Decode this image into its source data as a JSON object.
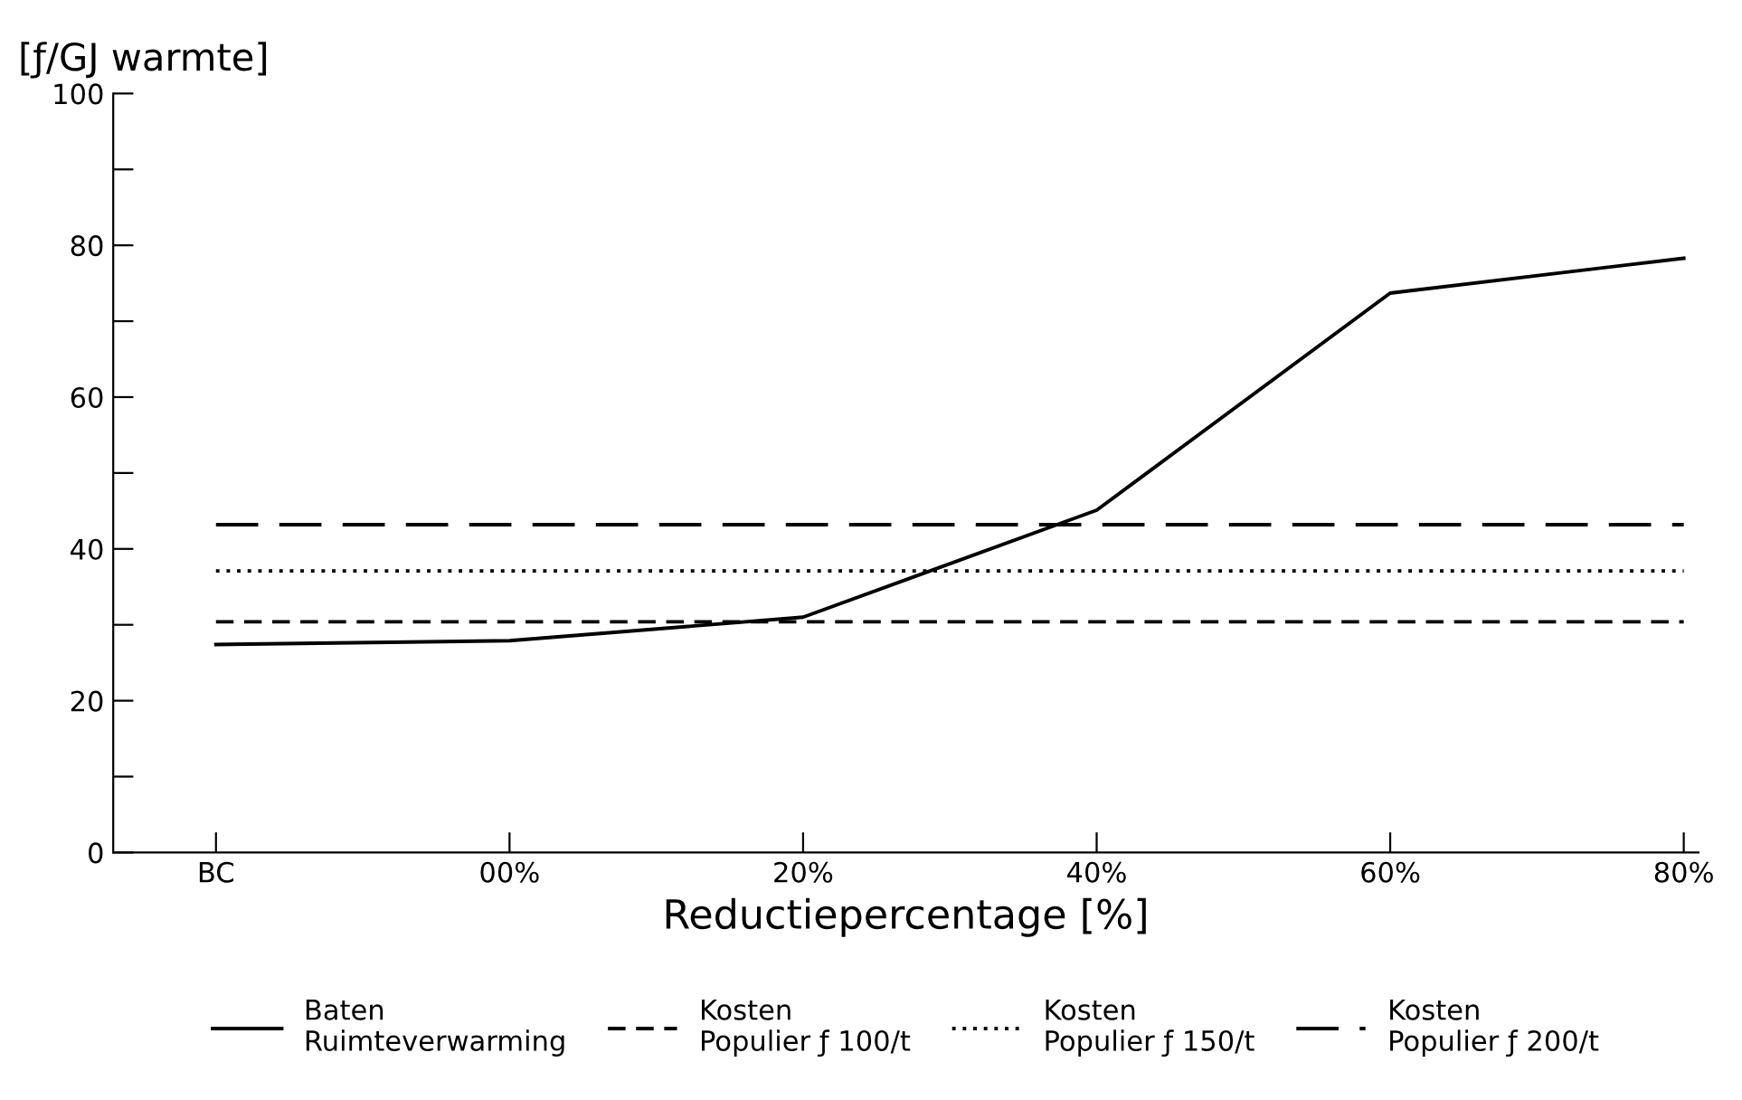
{
  "chart_data": {
    "type": "line",
    "ylabel": "[ƒ/GJ warmte]",
    "xlabel": "Reductiepercentage [%]",
    "categories": [
      "BC",
      "00%",
      "20%",
      "40%",
      "60%",
      "80%"
    ],
    "series": [
      {
        "name": "Baten\nRuimteverwarming",
        "color": "#000000",
        "line_style": "solid",
        "values": [
          27.4,
          27.9,
          31.0,
          45.1,
          73.7,
          78.3
        ]
      },
      {
        "name": "Kosten\nPopulier ƒ 100/t",
        "color": "#000000",
        "line_style": "dashed",
        "values": [
          30.4,
          30.4,
          30.4,
          30.4,
          30.4,
          30.4
        ]
      },
      {
        "name": "Kosten\nPopulier ƒ 150/t",
        "color": "#000000",
        "line_style": "dotted",
        "values": [
          37.1,
          37.1,
          37.1,
          37.1,
          37.1,
          37.1
        ]
      },
      {
        "name": "Kosten\nPopulier ƒ 200/t",
        "color": "#000000",
        "line_style": "longdash",
        "values": [
          43.2,
          43.2,
          43.2,
          43.2,
          43.2,
          43.2
        ]
      }
    ],
    "ylim": [
      0,
      100
    ],
    "yticks": [
      0,
      {
        "value": 10,
        "label": null
      },
      20,
      {
        "value": 30,
        "label": null
      },
      40,
      {
        "value": 50,
        "label": null
      },
      60,
      {
        "value": 70,
        "label": null
      },
      80,
      {
        "value": 90,
        "label": null
      },
      100
    ],
    "grid": false,
    "legend": "bottom",
    "marker": "none"
  }
}
